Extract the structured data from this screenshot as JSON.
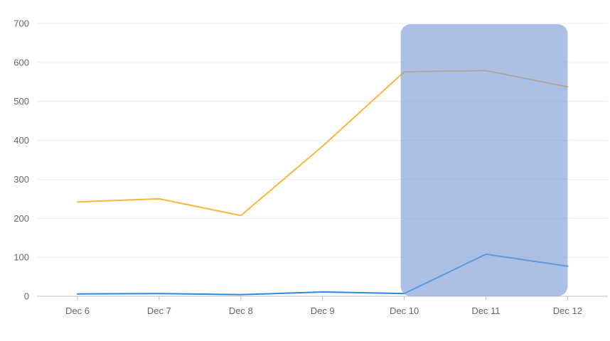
{
  "chart_data": {
    "type": "line",
    "title": "",
    "xlabel": "",
    "ylabel": "",
    "categories": [
      "Dec 6",
      "Dec 7",
      "Dec 8",
      "Dec 9",
      "Dec 10",
      "Dec 11",
      "Dec 12"
    ],
    "y_ticks": [
      "0",
      "100",
      "200",
      "300",
      "400",
      "500",
      "600",
      "700"
    ],
    "ylim": [
      0,
      700
    ],
    "grid": "horizontal",
    "legend": "none",
    "series": [
      {
        "color": "#f5b73d",
        "values": [
          242,
          250,
          207,
          385,
          576,
          579,
          537
        ]
      },
      {
        "color": "#2a89e0",
        "values": [
          6,
          7,
          4,
          11,
          7,
          108,
          77
        ]
      }
    ],
    "highlight": {
      "from": "Dec 10",
      "to": "Dec 12",
      "color": "#7f9ed8",
      "opacity": 0.65
    }
  }
}
